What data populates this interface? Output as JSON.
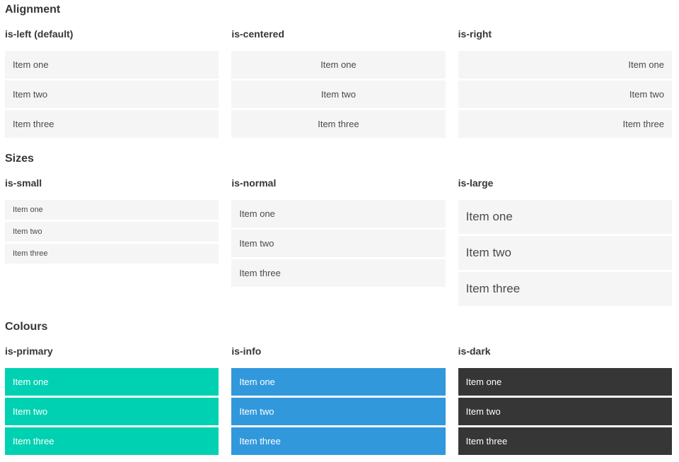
{
  "colors": {
    "primary": "#00d1b2",
    "info": "#3298dc",
    "dark": "#363636",
    "item_background": "#f5f5f5",
    "item_text": "#4a4a4a",
    "heading_text": "#363636",
    "colored_item_text": "#ffffff"
  },
  "sections": [
    {
      "title": "Alignment",
      "variants": [
        {
          "label": "is-left (default)",
          "items": [
            "Item one",
            "Item two",
            "Item three"
          ]
        },
        {
          "label": "is-centered",
          "items": [
            "Item one",
            "Item two",
            "Item three"
          ]
        },
        {
          "label": "is-right",
          "items": [
            "Item one",
            "Item two",
            "Item three"
          ]
        }
      ]
    },
    {
      "title": "Sizes",
      "variants": [
        {
          "label": "is-small",
          "items": [
            "Item one",
            "Item two",
            "Item three"
          ]
        },
        {
          "label": "is-normal",
          "items": [
            "Item one",
            "Item two",
            "Item three"
          ]
        },
        {
          "label": "is-large",
          "items": [
            "Item one",
            "Item two",
            "Item three"
          ]
        }
      ]
    },
    {
      "title": "Colours",
      "variants": [
        {
          "label": "is-primary",
          "items": [
            "Item one",
            "Item two",
            "Item three"
          ]
        },
        {
          "label": "is-info",
          "items": [
            "Item one",
            "Item two",
            "Item three"
          ]
        },
        {
          "label": "is-dark",
          "items": [
            "Item one",
            "Item two",
            "Item three"
          ]
        }
      ]
    }
  ]
}
